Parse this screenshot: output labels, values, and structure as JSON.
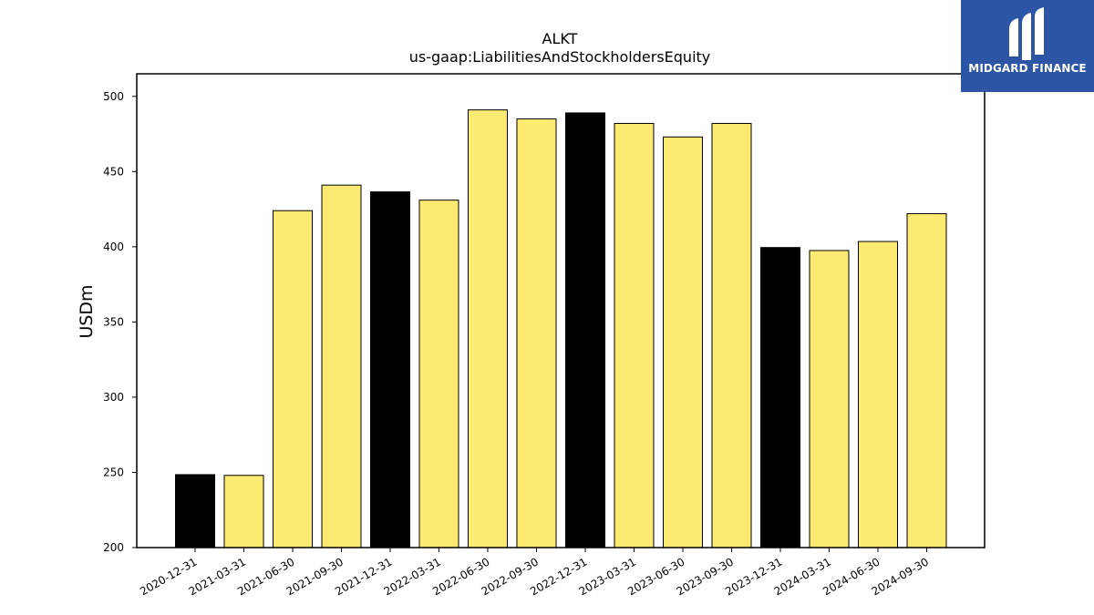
{
  "chart_data": {
    "type": "bar",
    "title": "ALKT",
    "subtitle": "us-gaap:LiabilitiesAndStockholdersEquity",
    "xlabel": "",
    "ylabel": "USDm",
    "ylim": [
      200,
      515
    ],
    "yticks": [
      200,
      250,
      300,
      350,
      400,
      450,
      500
    ],
    "categories": [
      "2020-12-31",
      "2021-03-31",
      "2021-06-30",
      "2021-09-30",
      "2021-12-31",
      "2022-03-31",
      "2022-06-30",
      "2022-09-30",
      "2022-12-31",
      "2023-03-31",
      "2023-06-30",
      "2023-09-30",
      "2023-12-31",
      "2024-03-31",
      "2024-06-30",
      "2024-09-30"
    ],
    "values": [
      248.5,
      248,
      424,
      441,
      436.5,
      431,
      491,
      485,
      489,
      482,
      473,
      482,
      399.5,
      397.5,
      403.5,
      422
    ],
    "bar_colors": [
      "#000000",
      "#fdea72",
      "#fdea72",
      "#fdea72",
      "#000000",
      "#fdea72",
      "#fdea72",
      "#fdea72",
      "#000000",
      "#fdea72",
      "#fdea72",
      "#fdea72",
      "#000000",
      "#fdea72",
      "#fdea72",
      "#fdea72"
    ],
    "grid": false,
    "legend": "none"
  },
  "logo": {
    "text": "MIDGARD FINANCE",
    "background": "#2c55a6"
  }
}
